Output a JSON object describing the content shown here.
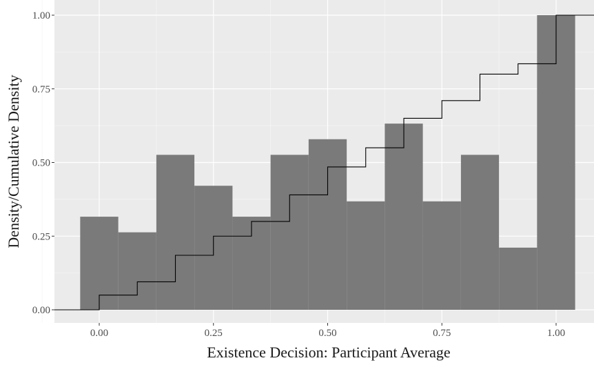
{
  "chart_data": {
    "type": "histogram",
    "xlabel": "Existence Decision: Participant Average",
    "ylabel": "Density/Cumulative Density",
    "xlim": [
      -0.1983,
      1.0833
    ],
    "ylim": [
      -0.0465,
      1.0
    ],
    "x_ticks": [
      0.0,
      0.25,
      0.5,
      0.75,
      1.0
    ],
    "x_tick_labels": [
      "0.00",
      "0.25",
      "0.50",
      "0.75",
      "1.00"
    ],
    "y_ticks": [
      0.0,
      0.25,
      0.5,
      0.75,
      1.0
    ],
    "y_tick_labels": [
      "0.00",
      "0.25",
      "0.50",
      "0.75",
      "1.00"
    ],
    "grid": true,
    "panel_background": "#ebebeb",
    "bar_color": "#7a7a7a",
    "step_color": "#000000",
    "bars": [
      {
        "x0": -0.0417,
        "x1": 0.0417,
        "density": 0.316
      },
      {
        "x0": 0.0417,
        "x1": 0.125,
        "density": 0.263
      },
      {
        "x0": 0.125,
        "x1": 0.2083,
        "density": 0.526
      },
      {
        "x0": 0.2083,
        "x1": 0.2917,
        "density": 0.421
      },
      {
        "x0": 0.2917,
        "x1": 0.375,
        "density": 0.316
      },
      {
        "x0": 0.375,
        "x1": 0.4583,
        "density": 0.526
      },
      {
        "x0": 0.4583,
        "x1": 0.5417,
        "density": 0.579
      },
      {
        "x0": 0.5417,
        "x1": 0.625,
        "density": 0.368
      },
      {
        "x0": 0.625,
        "x1": 0.7083,
        "density": 0.632
      },
      {
        "x0": 0.7083,
        "x1": 0.7917,
        "density": 0.368
      },
      {
        "x0": 0.7917,
        "x1": 0.875,
        "density": 0.526
      },
      {
        "x0": 0.875,
        "x1": 0.9583,
        "density": 0.211
      },
      {
        "x0": 0.9583,
        "x1": 1.0417,
        "density": 1.0
      }
    ],
    "ecdf": {
      "x": [
        0.0,
        0.0833,
        0.1667,
        0.25,
        0.3333,
        0.4167,
        0.5,
        0.5833,
        0.6667,
        0.75,
        0.8333,
        0.9167,
        1.0
      ],
      "y": [
        0.05,
        0.095,
        0.185,
        0.25,
        0.3,
        0.39,
        0.485,
        0.55,
        0.65,
        0.71,
        0.8,
        0.835,
        1.0
      ]
    }
  }
}
